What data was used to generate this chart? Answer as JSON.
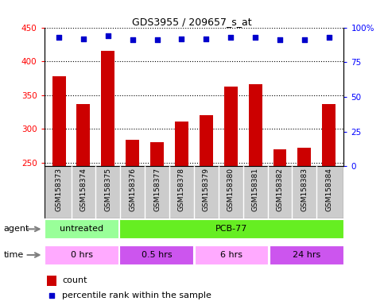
{
  "title": "GDS3955 / 209657_s_at",
  "categories": [
    "GSM158373",
    "GSM158374",
    "GSM158375",
    "GSM158376",
    "GSM158377",
    "GSM158378",
    "GSM158379",
    "GSM158380",
    "GSM158381",
    "GSM158382",
    "GSM158383",
    "GSM158384"
  ],
  "counts": [
    378,
    337,
    415,
    284,
    281,
    311,
    321,
    363,
    366,
    270,
    272,
    337
  ],
  "percentile_ranks": [
    93,
    92,
    94,
    91,
    91,
    92,
    92,
    93,
    93,
    91,
    91,
    93
  ],
  "ylim_left": [
    245,
    450
  ],
  "ylim_right": [
    0,
    100
  ],
  "yticks_left": [
    250,
    300,
    350,
    400,
    450
  ],
  "yticks_right": [
    0,
    25,
    50,
    75,
    100
  ],
  "bar_color": "#cc0000",
  "dot_color": "#0000cc",
  "agent_labels": [
    {
      "label": "untreated",
      "start": 0,
      "end": 3,
      "color": "#99ff99"
    },
    {
      "label": "PCB-77",
      "start": 3,
      "end": 12,
      "color": "#66ee22"
    }
  ],
  "time_labels": [
    {
      "label": "0 hrs",
      "start": 0,
      "end": 3,
      "color": "#ffaaff"
    },
    {
      "label": "0.5 hrs",
      "start": 3,
      "end": 6,
      "color": "#cc55ee"
    },
    {
      "label": "6 hrs",
      "start": 6,
      "end": 9,
      "color": "#ffaaff"
    },
    {
      "label": "24 hrs",
      "start": 9,
      "end": 12,
      "color": "#cc55ee"
    }
  ],
  "legend_count_color": "#cc0000",
  "legend_dot_color": "#0000cc",
  "bg_color": "#ffffff",
  "bar_base": 245,
  "xtick_bg_color": "#cccccc",
  "border_color": "#000000"
}
